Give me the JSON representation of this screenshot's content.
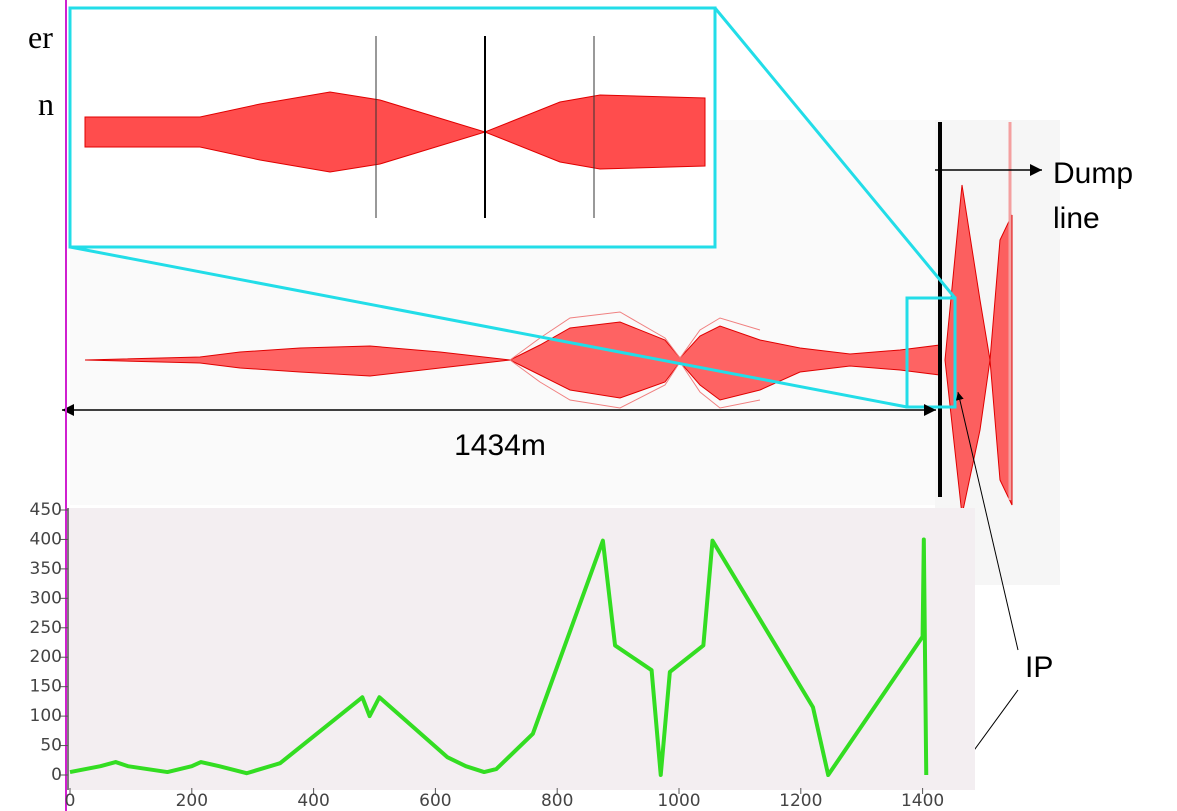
{
  "chart_data": {
    "type": "line",
    "x": [
      0,
      50,
      75,
      95,
      160,
      200,
      215,
      245,
      290,
      345,
      480,
      492,
      508,
      620,
      650,
      680,
      700,
      760,
      875,
      895,
      955,
      970,
      985,
      1040,
      1055,
      1220,
      1245,
      1400,
      1402,
      1406
    ],
    "series": [
      {
        "color": "#33dd22",
        "values": [
          5,
          15,
          22,
          15,
          5,
          15,
          22,
          15,
          3,
          20,
          132,
          100,
          132,
          30,
          15,
          5,
          10,
          70,
          398,
          220,
          178,
          0,
          175,
          220,
          398,
          115,
          0,
          235,
          400,
          0
        ]
      }
    ],
    "xlim": [
      0,
      1480
    ],
    "xticks": [
      0,
      200,
      400,
      600,
      800,
      1000,
      1200,
      1400
    ],
    "ylim": [
      0,
      450
    ],
    "yticks": [
      0,
      50,
      100,
      150,
      200,
      250,
      300,
      350,
      400,
      450
    ],
    "annotations": [
      "er",
      "n",
      "Dump",
      "line",
      "1434m",
      "IP"
    ]
  }
}
